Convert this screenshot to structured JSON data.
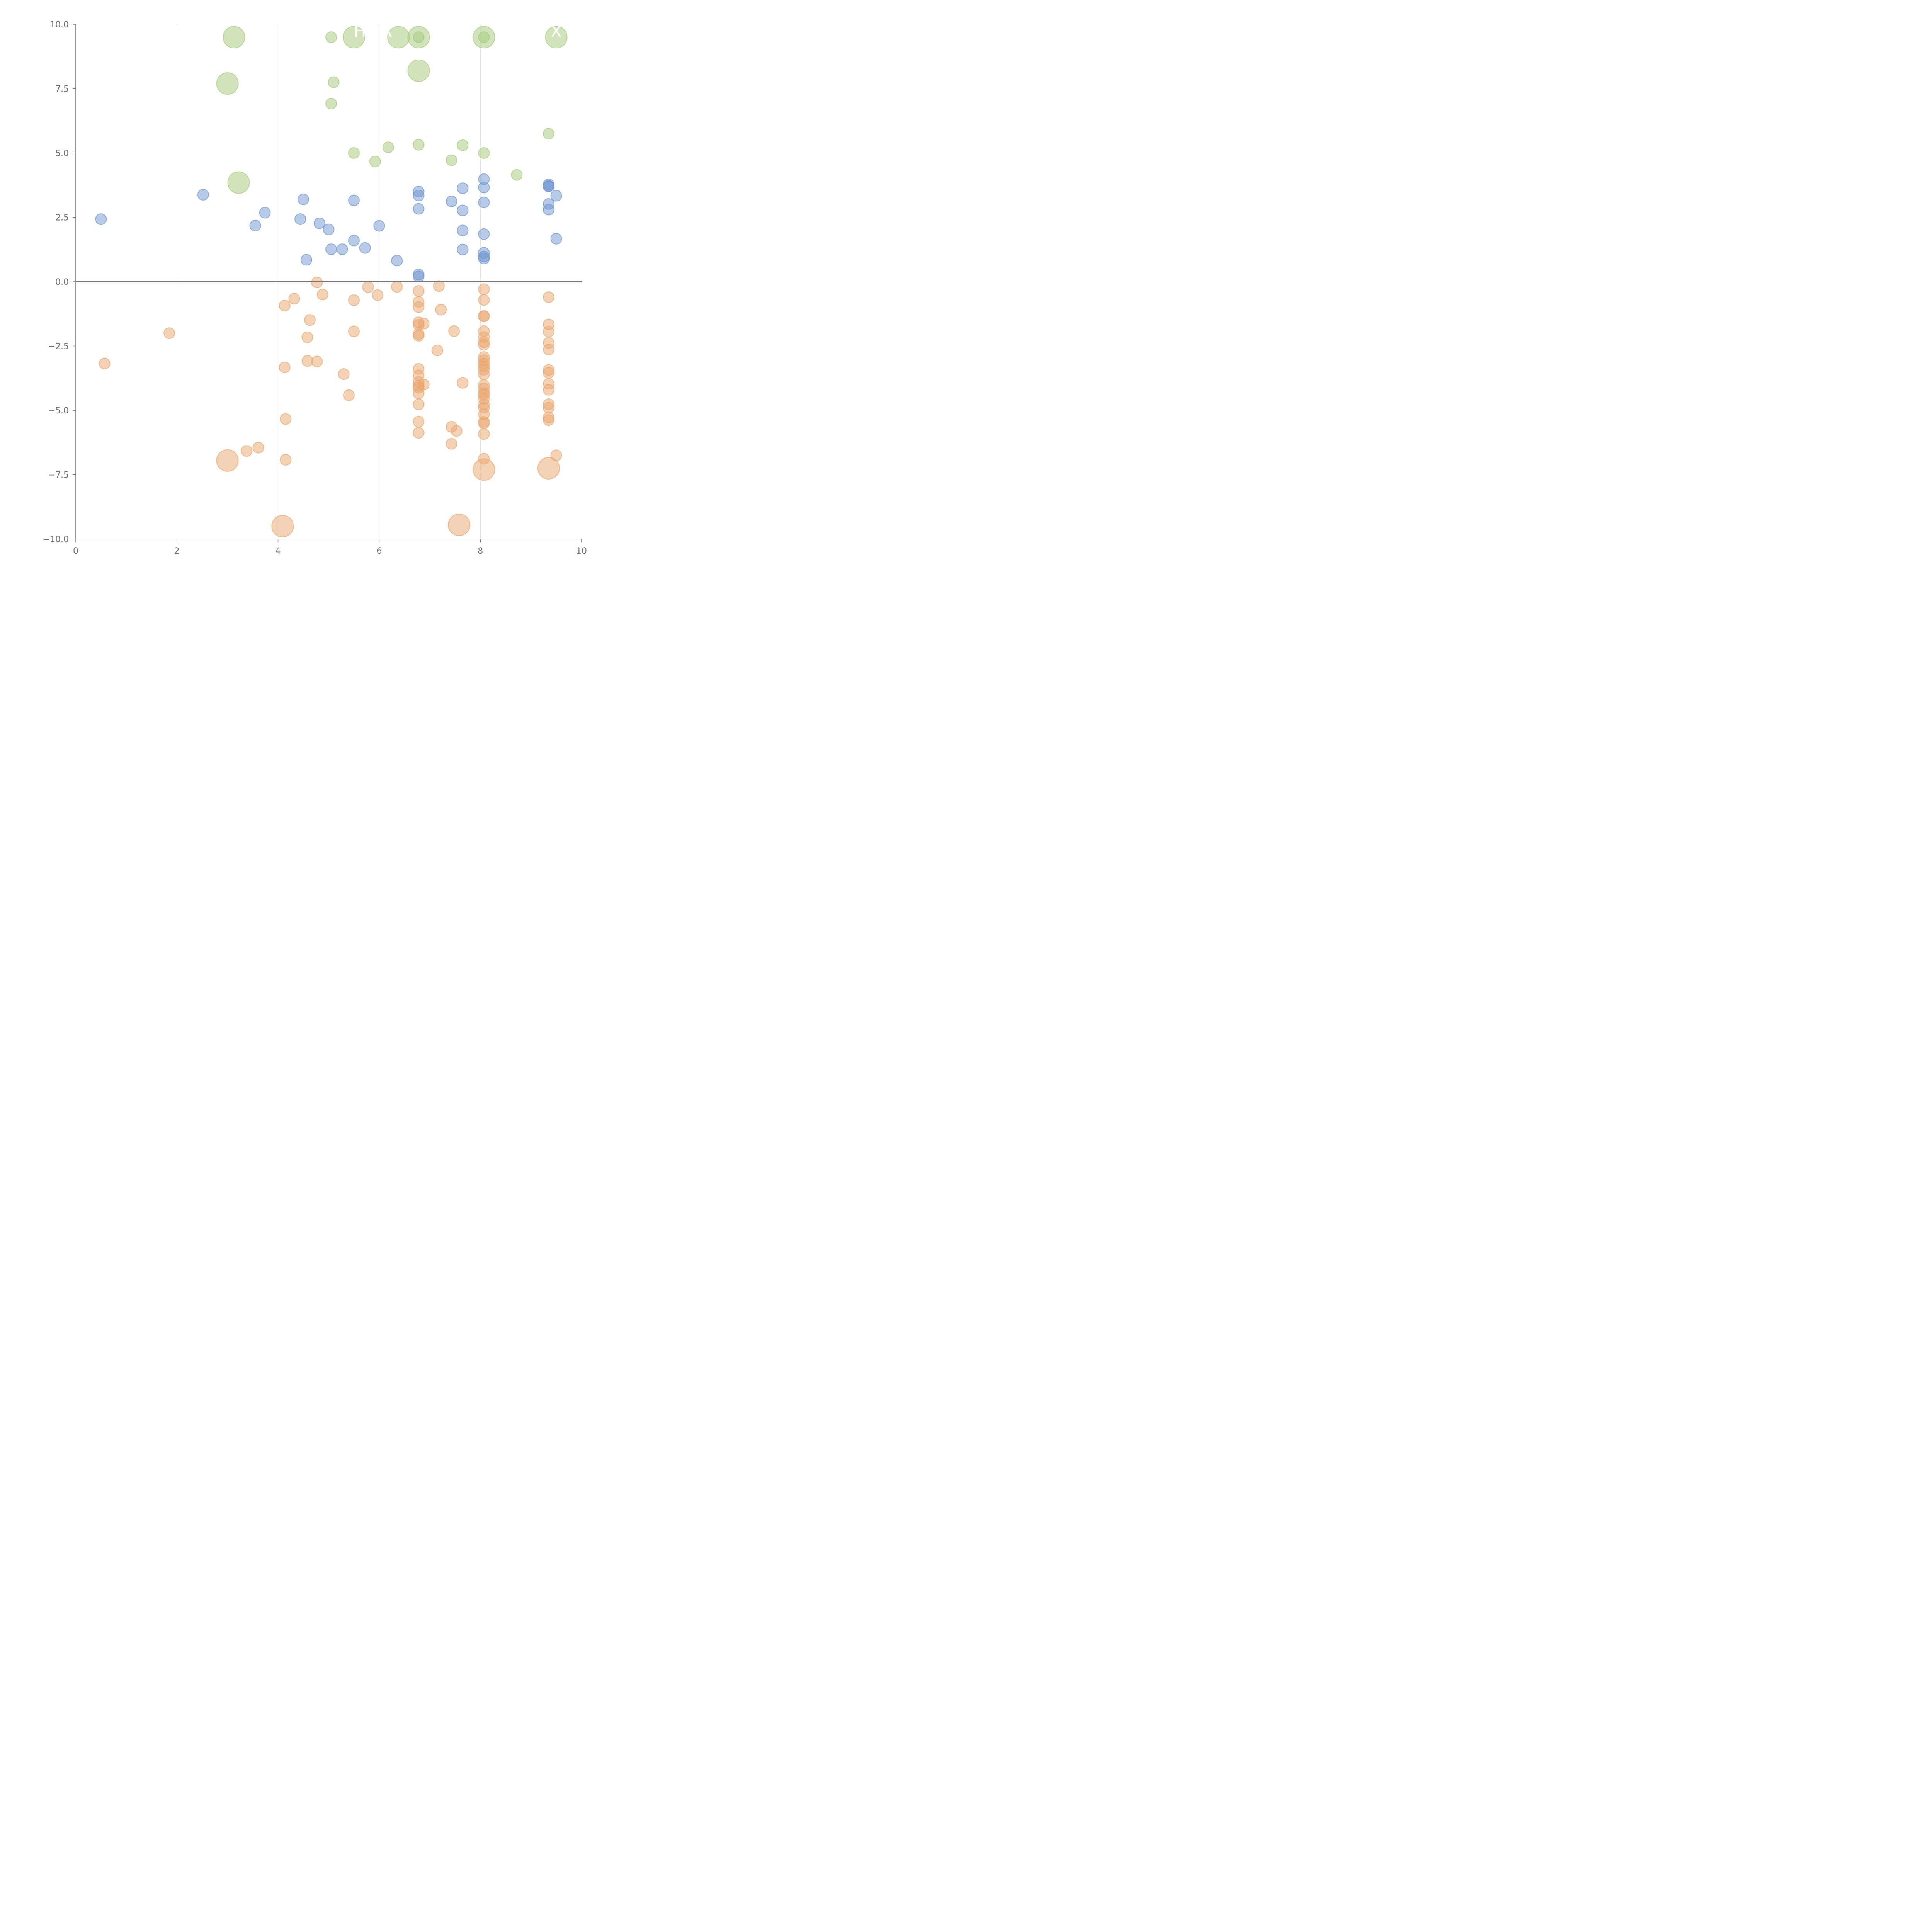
{
  "chart_data": {
    "type": "scatter",
    "title": "",
    "xlabel": "",
    "ylabel": "",
    "xlim": [
      0,
      10
    ],
    "ylim": [
      -10,
      10
    ],
    "x_ticks": [
      "0",
      "2",
      "4",
      "6",
      "8",
      "10"
    ],
    "y_ticks": [
      "10.0",
      "7.5",
      "5.0",
      "2.5",
      "0.0",
      "−2.5",
      "−5.0",
      "−7.5",
      "−10.0"
    ],
    "grid": "vertical",
    "legend": "none",
    "annotations": [
      "H",
      "R",
      "X"
    ],
    "series": [
      {
        "name": "green",
        "color": "#a6c97a",
        "points": [
          [
            3.13,
            9.5,
            "L"
          ],
          [
            5.05,
            9.5,
            "S"
          ],
          [
            5.5,
            9.5,
            "L"
          ],
          [
            6.38,
            9.5,
            "L"
          ],
          [
            6.78,
            9.5,
            "L"
          ],
          [
            6.78,
            9.5,
            "S"
          ],
          [
            8.07,
            9.5,
            "L"
          ],
          [
            8.07,
            9.5,
            "S"
          ],
          [
            9.5,
            9.5,
            "L"
          ],
          [
            6.78,
            8.2,
            "L"
          ],
          [
            3.0,
            7.7,
            "L"
          ],
          [
            5.1,
            7.75,
            "S"
          ],
          [
            5.05,
            6.92,
            "S"
          ],
          [
            9.35,
            5.75,
            "S"
          ],
          [
            6.78,
            5.32,
            "S"
          ],
          [
            7.65,
            5.3,
            "S"
          ],
          [
            6.18,
            5.22,
            "S"
          ],
          [
            5.5,
            5.0,
            "S"
          ],
          [
            8.07,
            5.0,
            "S"
          ],
          [
            7.43,
            4.72,
            "S"
          ],
          [
            5.92,
            4.67,
            "S"
          ],
          [
            8.72,
            4.15,
            "S"
          ],
          [
            3.22,
            3.85,
            "L"
          ]
        ]
      },
      {
        "name": "blue",
        "color": "#6f96cf",
        "points": [
          [
            0.5,
            2.43,
            "S"
          ],
          [
            2.52,
            3.38,
            "S"
          ],
          [
            3.55,
            2.18,
            "S"
          ],
          [
            3.74,
            2.68,
            "S"
          ],
          [
            4.44,
            2.43,
            "S"
          ],
          [
            4.5,
            3.2,
            "S"
          ],
          [
            4.56,
            0.85,
            "S"
          ],
          [
            4.82,
            2.27,
            "S"
          ],
          [
            5.0,
            2.03,
            "S"
          ],
          [
            5.05,
            1.26,
            "S"
          ],
          [
            5.27,
            1.26,
            "S"
          ],
          [
            5.5,
            3.16,
            "S"
          ],
          [
            5.5,
            1.6,
            "S"
          ],
          [
            5.72,
            1.31,
            "S"
          ],
          [
            6.0,
            2.17,
            "S"
          ],
          [
            6.35,
            0.82,
            "S"
          ],
          [
            6.78,
            3.5,
            "S"
          ],
          [
            6.78,
            3.35,
            "S"
          ],
          [
            6.78,
            2.83,
            "S"
          ],
          [
            6.78,
            0.28,
            "S"
          ],
          [
            6.78,
            0.2,
            "S"
          ],
          [
            7.43,
            3.12,
            "S"
          ],
          [
            7.65,
            3.63,
            "S"
          ],
          [
            7.65,
            2.77,
            "S"
          ],
          [
            7.65,
            1.99,
            "S"
          ],
          [
            7.65,
            1.25,
            "S"
          ],
          [
            8.07,
            3.98,
            "S"
          ],
          [
            8.07,
            3.66,
            "S"
          ],
          [
            8.07,
            3.08,
            "S"
          ],
          [
            8.07,
            1.85,
            "S"
          ],
          [
            8.07,
            1.12,
            "S"
          ],
          [
            8.07,
            0.98,
            "S"
          ],
          [
            8.07,
            0.9,
            "S"
          ],
          [
            9.35,
            3.78,
            "S"
          ],
          [
            9.35,
            3.72,
            "S"
          ],
          [
            9.35,
            3.7,
            "S"
          ],
          [
            9.35,
            3.02,
            "S"
          ],
          [
            9.35,
            2.8,
            "S"
          ],
          [
            9.5,
            3.34,
            "S"
          ],
          [
            9.5,
            1.67,
            "S"
          ]
        ]
      },
      {
        "name": "orange",
        "color": "#e9a66d",
        "points": [
          [
            0.57,
            -3.18,
            "S"
          ],
          [
            1.85,
            -2.0,
            "S"
          ],
          [
            3.0,
            -6.95,
            "L"
          ],
          [
            3.38,
            -6.58,
            "S"
          ],
          [
            3.61,
            -6.45,
            "S"
          ],
          [
            4.09,
            -9.5,
            "L"
          ],
          [
            4.13,
            -0.93,
            "S"
          ],
          [
            4.13,
            -3.33,
            "S"
          ],
          [
            4.15,
            -5.34,
            "S"
          ],
          [
            4.15,
            -6.92,
            "S"
          ],
          [
            4.32,
            -0.66,
            "S"
          ],
          [
            4.58,
            -2.16,
            "S"
          ],
          [
            4.58,
            -3.08,
            "S"
          ],
          [
            4.63,
            -1.49,
            "S"
          ],
          [
            4.77,
            -0.03,
            "S"
          ],
          [
            4.77,
            -3.1,
            "S"
          ],
          [
            4.88,
            -0.5,
            "S"
          ],
          [
            5.3,
            -3.59,
            "S"
          ],
          [
            5.4,
            -4.41,
            "S"
          ],
          [
            5.5,
            -0.72,
            "S"
          ],
          [
            5.5,
            -1.93,
            "S"
          ],
          [
            5.78,
            -0.21,
            "S"
          ],
          [
            5.97,
            -0.52,
            "S"
          ],
          [
            6.35,
            -0.2,
            "S"
          ],
          [
            6.78,
            -0.36,
            "S"
          ],
          [
            6.78,
            -0.78,
            "S"
          ],
          [
            6.78,
            -0.99,
            "S"
          ],
          [
            6.78,
            -1.58,
            "S"
          ],
          [
            6.78,
            -1.68,
            "S"
          ],
          [
            6.88,
            -1.63,
            "S"
          ],
          [
            6.78,
            -2.03,
            "S"
          ],
          [
            6.78,
            -2.1,
            "S"
          ],
          [
            6.78,
            -3.39,
            "S"
          ],
          [
            6.78,
            -3.64,
            "S"
          ],
          [
            6.78,
            -3.9,
            "S"
          ],
          [
            6.78,
            -4.05,
            "S"
          ],
          [
            6.88,
            -4.0,
            "S"
          ],
          [
            6.78,
            -4.12,
            "S"
          ],
          [
            6.78,
            -4.34,
            "S"
          ],
          [
            6.78,
            -4.77,
            "S"
          ],
          [
            6.78,
            -5.44,
            "S"
          ],
          [
            6.78,
            -5.87,
            "S"
          ],
          [
            7.15,
            -2.67,
            "S"
          ],
          [
            7.18,
            -0.17,
            "S"
          ],
          [
            7.22,
            -1.09,
            "S"
          ],
          [
            7.43,
            -5.64,
            "S"
          ],
          [
            7.43,
            -6.3,
            "S"
          ],
          [
            7.48,
            -1.92,
            "S"
          ],
          [
            7.53,
            -5.8,
            "S"
          ],
          [
            7.58,
            -9.45,
            "L"
          ],
          [
            7.65,
            -3.93,
            "S"
          ],
          [
            8.07,
            -0.29,
            "S"
          ],
          [
            8.07,
            -0.71,
            "S"
          ],
          [
            8.07,
            -1.33,
            "S"
          ],
          [
            8.07,
            -1.35,
            "S"
          ],
          [
            8.07,
            -1.92,
            "S"
          ],
          [
            8.07,
            -2.15,
            "S"
          ],
          [
            8.07,
            -2.35,
            "S"
          ],
          [
            8.07,
            -2.45,
            "S"
          ],
          [
            8.07,
            -2.93,
            "S"
          ],
          [
            8.07,
            -3.05,
            "S"
          ],
          [
            8.07,
            -3.18,
            "S"
          ],
          [
            8.07,
            -3.3,
            "S"
          ],
          [
            8.07,
            -3.42,
            "S"
          ],
          [
            8.07,
            -3.6,
            "S"
          ],
          [
            8.07,
            -4.02,
            "S"
          ],
          [
            8.07,
            -4.15,
            "S"
          ],
          [
            8.07,
            -4.32,
            "S"
          ],
          [
            8.07,
            -4.4,
            "S"
          ],
          [
            8.07,
            -4.55,
            "S"
          ],
          [
            8.07,
            -4.78,
            "S"
          ],
          [
            8.07,
            -4.9,
            "S"
          ],
          [
            8.07,
            -5.15,
            "S"
          ],
          [
            8.07,
            -5.45,
            "S"
          ],
          [
            8.07,
            -5.5,
            "S"
          ],
          [
            8.07,
            -5.92,
            "S"
          ],
          [
            8.07,
            -6.88,
            "S"
          ],
          [
            8.07,
            -7.3,
            "L"
          ],
          [
            9.35,
            -0.6,
            "S"
          ],
          [
            9.35,
            -1.66,
            "S"
          ],
          [
            9.35,
            -1.94,
            "S"
          ],
          [
            9.35,
            -2.38,
            "S"
          ],
          [
            9.35,
            -2.64,
            "S"
          ],
          [
            9.35,
            -3.43,
            "S"
          ],
          [
            9.35,
            -3.54,
            "S"
          ],
          [
            9.35,
            -3.97,
            "S"
          ],
          [
            9.35,
            -4.2,
            "S"
          ],
          [
            9.35,
            -4.76,
            "S"
          ],
          [
            9.35,
            -4.9,
            "S"
          ],
          [
            9.35,
            -5.28,
            "S"
          ],
          [
            9.35,
            -5.38,
            "S"
          ],
          [
            9.5,
            -6.75,
            "S"
          ],
          [
            9.35,
            -7.25,
            "L"
          ]
        ]
      }
    ]
  }
}
